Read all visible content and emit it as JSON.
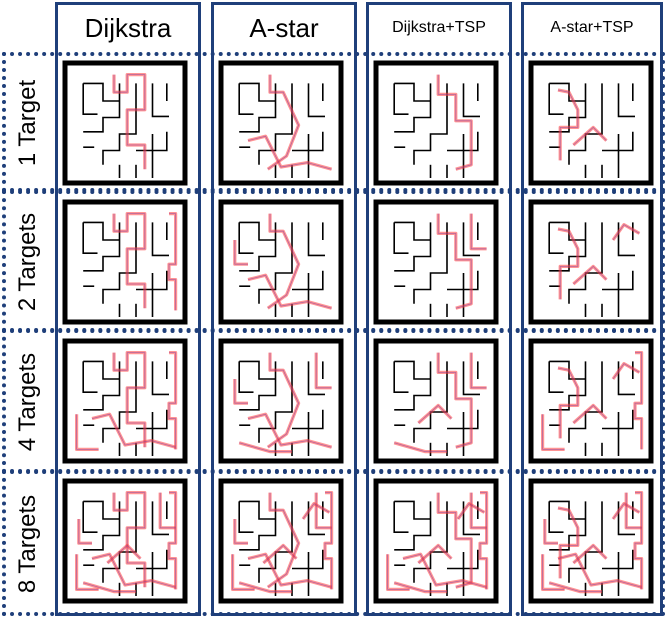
{
  "columns": [
    {
      "label": "Dijkstra"
    },
    {
      "label": "A-star"
    },
    {
      "label": "Dijkstra+TSP"
    },
    {
      "label": "A-star+TSP"
    }
  ],
  "rows": [
    {
      "label": "1 Target"
    },
    {
      "label": "2 Targets"
    },
    {
      "label": "4 Targets"
    },
    {
      "label": "8 Targets"
    }
  ],
  "colors": {
    "frame": "#1f3f7a",
    "maze_wall": "#000000",
    "path": "#ff3b3b",
    "path_core": "#7a3aa0"
  }
}
